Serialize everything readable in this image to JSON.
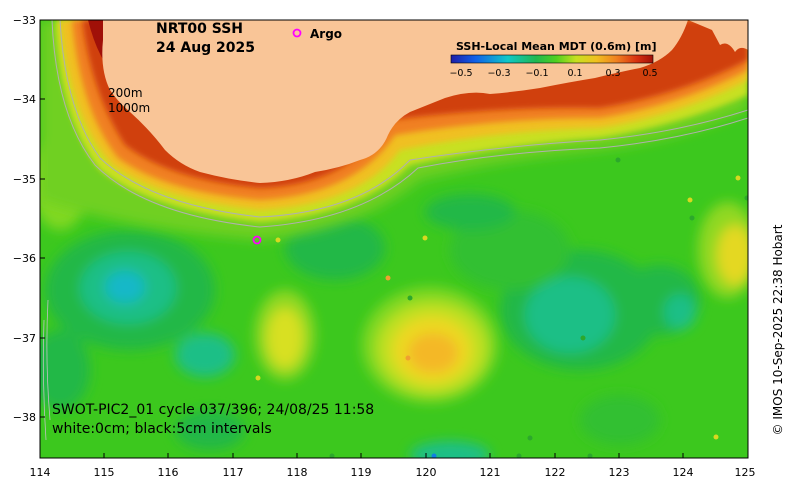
{
  "title": {
    "line1": "NRT00 SSH",
    "line2": "24 Aug 2025"
  },
  "depth_labels": {
    "shallow": "200m",
    "deep": "1000m"
  },
  "argo_label": "Argo",
  "legend": {
    "title": "SSH-Local Mean MDT (0.6m) [m]",
    "ticks": [
      "−0.5",
      "−0.3",
      "−0.1",
      "0.1",
      "0.3",
      "0.5"
    ]
  },
  "axes": {
    "x_ticks": [
      "114",
      "115",
      "116",
      "117",
      "118",
      "119",
      "120",
      "121",
      "122",
      "123",
      "124",
      "125"
    ],
    "y_ticks": [
      "−33",
      "−34",
      "−35",
      "−36",
      "−37",
      "−38"
    ]
  },
  "swot": {
    "line1": "SWOT-PIC2_01 cycle 037/396; 24/08/25 11:58",
    "line2": "white:0cm; black:5cm intervals"
  },
  "credit": "© IMOS 10-Sep-2025 22:38 Hobart",
  "colors": {
    "land": "#f9c597",
    "base_green": "#3cc81e",
    "argo_marker": "#ff00ff"
  }
}
